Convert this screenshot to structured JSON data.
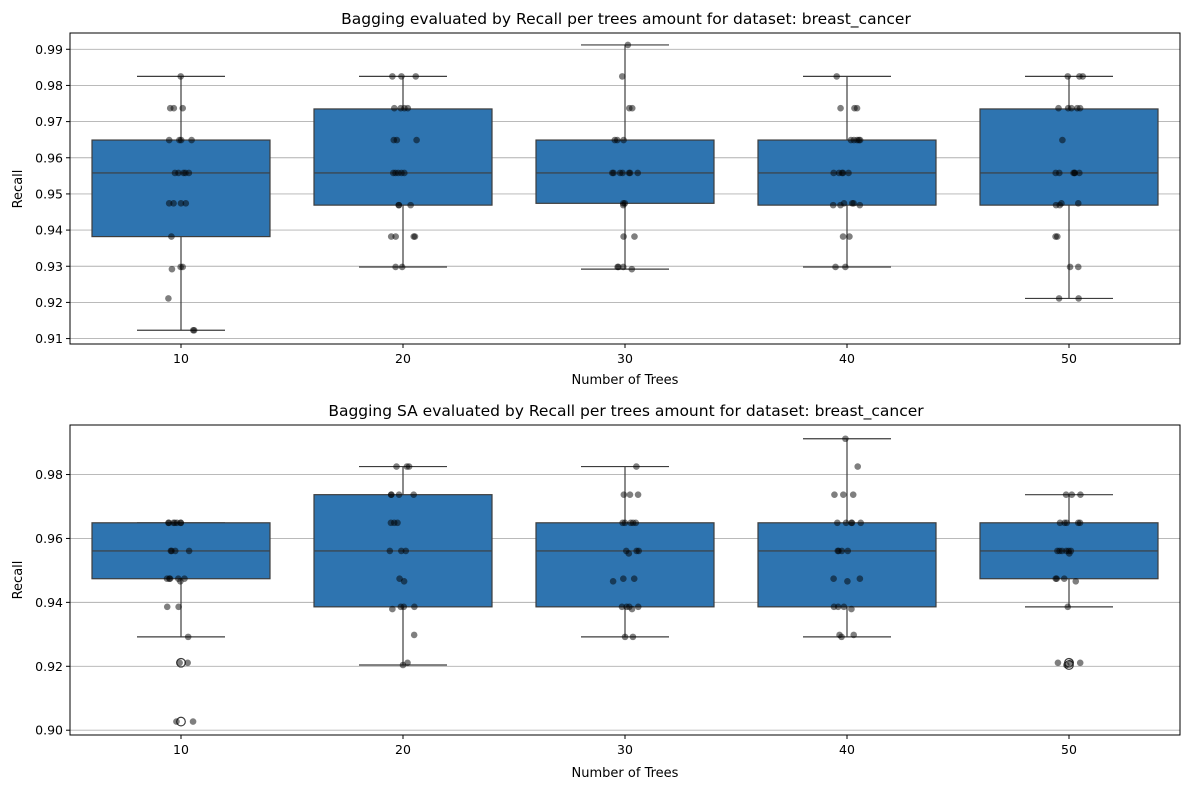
{
  "chart_data": [
    {
      "type": "box",
      "title": "Bagging evaluated by Recall per trees amount for dataset: breast_cancer",
      "xlabel": "Number of Trees",
      "ylabel": "Recall",
      "categories": [
        "10",
        "20",
        "30",
        "40",
        "50"
      ],
      "ylim": [
        0.9085,
        0.9945
      ],
      "yticks": [
        0.91,
        0.92,
        0.93,
        0.94,
        0.95,
        0.96,
        0.97,
        0.98,
        0.99
      ],
      "ytick_labels": [
        "0.91",
        "0.92",
        "0.93",
        "0.94",
        "0.95",
        "0.96",
        "0.97",
        "0.98",
        "0.99"
      ],
      "grid": "horizontal",
      "box_color": "#2e74b0",
      "point_color": "#000000",
      "boxes": [
        {
          "whisker_low": 0.9123,
          "q1": 0.9382,
          "median": 0.9558,
          "q3": 0.9649,
          "whisker_high": 0.9825,
          "outliers": []
        },
        {
          "whisker_low": 0.9298,
          "q1": 0.9469,
          "median": 0.9558,
          "q3": 0.9735,
          "whisker_high": 0.9825,
          "outliers": []
        },
        {
          "whisker_low": 0.9292,
          "q1": 0.9474,
          "median": 0.9558,
          "q3": 0.9649,
          "whisker_high": 0.9912,
          "outliers": []
        },
        {
          "whisker_low": 0.9298,
          "q1": 0.9469,
          "median": 0.9558,
          "q3": 0.9649,
          "whisker_high": 0.9825,
          "outliers": []
        },
        {
          "whisker_low": 0.9211,
          "q1": 0.9469,
          "median": 0.9558,
          "q3": 0.9735,
          "whisker_high": 0.9825,
          "outliers": []
        }
      ],
      "points": [
        [
          0.9825,
          0.9737,
          0.9737,
          0.9737,
          0.9649,
          0.9649,
          0.9649,
          0.9649,
          0.9558,
          0.9558,
          0.9558,
          0.9558,
          0.9558,
          0.9474,
          0.9474,
          0.9474,
          0.9474,
          0.9382,
          0.9298,
          0.9298,
          0.9292,
          0.9211,
          0.9123,
          0.9123
        ],
        [
          0.9825,
          0.9825,
          0.9825,
          0.9737,
          0.9737,
          0.9737,
          0.9737,
          0.9649,
          0.9649,
          0.9649,
          0.9558,
          0.9558,
          0.9558,
          0.9558,
          0.9558,
          0.9469,
          0.9469,
          0.9469,
          0.9382,
          0.9382,
          0.9382,
          0.9382,
          0.9298,
          0.9298
        ],
        [
          0.9912,
          0.9825,
          0.9737,
          0.9737,
          0.9649,
          0.9649,
          0.9649,
          0.9558,
          0.9558,
          0.9558,
          0.9558,
          0.9558,
          0.9558,
          0.9558,
          0.9474,
          0.9474,
          0.9469,
          0.9382,
          0.9382,
          0.9298,
          0.9298,
          0.9298,
          0.9292
        ],
        [
          0.9825,
          0.9737,
          0.9737,
          0.9737,
          0.9649,
          0.9649,
          0.9649,
          0.9649,
          0.9649,
          0.9558,
          0.9558,
          0.9558,
          0.9558,
          0.9558,
          0.9474,
          0.9474,
          0.9474,
          0.9469,
          0.9469,
          0.9469,
          0.9382,
          0.9382,
          0.9298,
          0.9298
        ],
        [
          0.9825,
          0.9825,
          0.9825,
          0.9737,
          0.9737,
          0.9737,
          0.9737,
          0.9737,
          0.9649,
          0.9558,
          0.9558,
          0.9558,
          0.9558,
          0.9558,
          0.9558,
          0.9474,
          0.9474,
          0.9469,
          0.9469,
          0.9382,
          0.9382,
          0.9298,
          0.9298,
          0.9211,
          0.9211
        ]
      ]
    },
    {
      "type": "box",
      "title": "Bagging SA evaluated by Recall per trees amount for dataset: breast_cancer",
      "xlabel": "Number of Trees",
      "ylabel": "Recall",
      "categories": [
        "10",
        "20",
        "30",
        "40",
        "50"
      ],
      "ylim": [
        0.8985,
        0.9955
      ],
      "yticks": [
        0.9,
        0.92,
        0.94,
        0.96,
        0.98
      ],
      "ytick_labels": [
        "0.90",
        "0.92",
        "0.94",
        "0.96",
        "0.98"
      ],
      "grid": "horizontal",
      "box_color": "#2e74b0",
      "point_color": "#000000",
      "boxes": [
        {
          "whisker_low": 0.9292,
          "q1": 0.9474,
          "median": 0.9561,
          "q3": 0.9649,
          "whisker_high": 0.9649,
          "outliers": [
            0.9211,
            0.9027
          ]
        },
        {
          "whisker_low": 0.9204,
          "q1": 0.9386,
          "median": 0.9561,
          "q3": 0.9737,
          "whisker_high": 0.9825,
          "outliers": []
        },
        {
          "whisker_low": 0.9292,
          "q1": 0.9386,
          "median": 0.9561,
          "q3": 0.9649,
          "whisker_high": 0.9825,
          "outliers": []
        },
        {
          "whisker_low": 0.9292,
          "q1": 0.9386,
          "median": 0.9561,
          "q3": 0.9649,
          "whisker_high": 0.9912,
          "outliers": []
        },
        {
          "whisker_low": 0.9386,
          "q1": 0.9474,
          "median": 0.9561,
          "q3": 0.9649,
          "whisker_high": 0.9737,
          "outliers": [
            0.9211,
            0.9204
          ]
        }
      ],
      "points": [
        [
          0.9649,
          0.9649,
          0.9649,
          0.9649,
          0.9649,
          0.9649,
          0.9649,
          0.9561,
          0.9561,
          0.9561,
          0.9561,
          0.9474,
          0.9474,
          0.9474,
          0.9474,
          0.9474,
          0.9466,
          0.9386,
          0.9386,
          0.9292,
          0.9211,
          0.9211,
          0.9027,
          0.9027
        ],
        [
          0.9825,
          0.9825,
          0.9825,
          0.9737,
          0.9737,
          0.9737,
          0.9737,
          0.9649,
          0.9649,
          0.9649,
          0.9561,
          0.9561,
          0.9561,
          0.9474,
          0.9466,
          0.9386,
          0.9386,
          0.9386,
          0.9379,
          0.9298,
          0.9211,
          0.9204
        ],
        [
          0.9825,
          0.9737,
          0.9737,
          0.9737,
          0.9649,
          0.9649,
          0.9649,
          0.9649,
          0.9649,
          0.9561,
          0.9561,
          0.9561,
          0.9553,
          0.9474,
          0.9474,
          0.9466,
          0.9386,
          0.9386,
          0.9386,
          0.9386,
          0.9379,
          0.9292,
          0.9292
        ],
        [
          0.9912,
          0.9825,
          0.9737,
          0.9737,
          0.9737,
          0.9649,
          0.9649,
          0.9649,
          0.9649,
          0.9649,
          0.9561,
          0.9561,
          0.9561,
          0.9561,
          0.9474,
          0.9474,
          0.9466,
          0.9386,
          0.9386,
          0.9386,
          0.9379,
          0.9298,
          0.9298,
          0.9292
        ],
        [
          0.9737,
          0.9737,
          0.9737,
          0.9649,
          0.9649,
          0.9649,
          0.9649,
          0.9649,
          0.9561,
          0.9561,
          0.9561,
          0.9561,
          0.9561,
          0.9561,
          0.9553,
          0.9474,
          0.9474,
          0.9474,
          0.9466,
          0.9386,
          0.9211,
          0.9211,
          0.9211,
          0.9204
        ]
      ]
    }
  ]
}
